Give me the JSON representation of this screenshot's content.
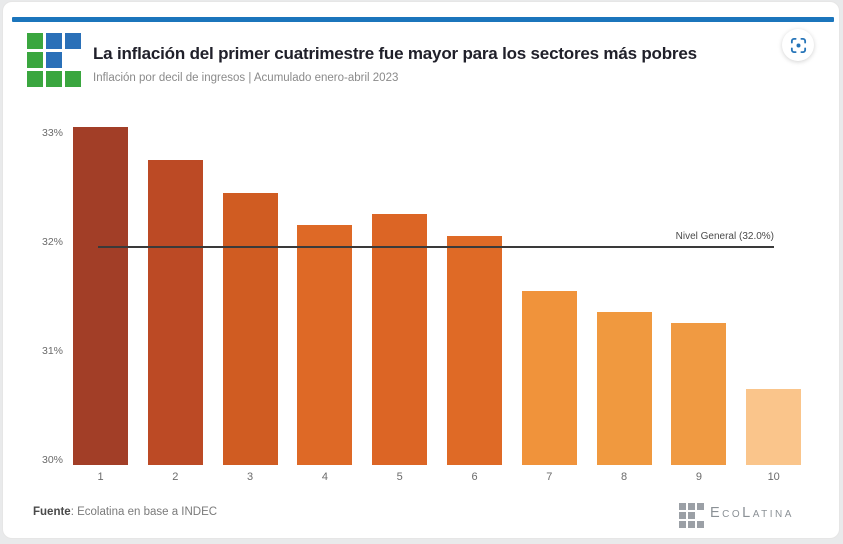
{
  "header": {
    "title": "La inflación del primer cuatrimestre fue mayor para los sectores más pobres",
    "subtitle": "Inflación por decil de ingresos | Acumulado enero-abril 2023",
    "accent_color": "#1b75bc",
    "logo": {
      "pattern": [
        [
          "green",
          "blue",
          "blue"
        ],
        [
          "green",
          "blue",
          null
        ],
        [
          "green",
          "green",
          "green"
        ]
      ],
      "colors": {
        "green": "#3aa63f",
        "blue": "#2a70b8"
      },
      "watermark_color": "#9ba0a6"
    },
    "snapshot_icon_color": "#2574b8"
  },
  "chart_data": {
    "type": "bar",
    "title": "La inflación del primer cuatrimestre fue mayor para los sectores más pobres",
    "subtitle": "Inflación por decil de ingresos | Acumulado enero-abril 2023",
    "xlabel": "",
    "ylabel": "",
    "categories": [
      "1",
      "2",
      "3",
      "4",
      "5",
      "6",
      "7",
      "8",
      "9",
      "10"
    ],
    "values": [
      33.1,
      32.8,
      32.5,
      32.2,
      32.3,
      32.1,
      31.6,
      31.4,
      31.3,
      30.7
    ],
    "bar_colors": [
      "#a23e27",
      "#bc4a25",
      "#d05c22",
      "#de6926",
      "#dc6525",
      "#df6a26",
      "#f0933b",
      "#f0993f",
      "#f09a42",
      "#fac58b"
    ],
    "y_ticks": [
      {
        "label": "33%",
        "value": 33
      },
      {
        "label": "32%",
        "value": 32
      },
      {
        "label": "31%",
        "value": 31
      },
      {
        "label": "30%",
        "value": 30
      }
    ],
    "ylim": [
      30,
      33.3
    ],
    "grid": false,
    "legend": false,
    "reference_line": {
      "value": 32.0,
      "label": "Nivel General (32.0%)",
      "color": "#3a3a3a"
    }
  },
  "footer": {
    "source_label": "Fuente",
    "source_rest": ": Ecolatina en base a INDEC",
    "brand": "EcoLatina",
    "brand_color": "#8b9196"
  }
}
